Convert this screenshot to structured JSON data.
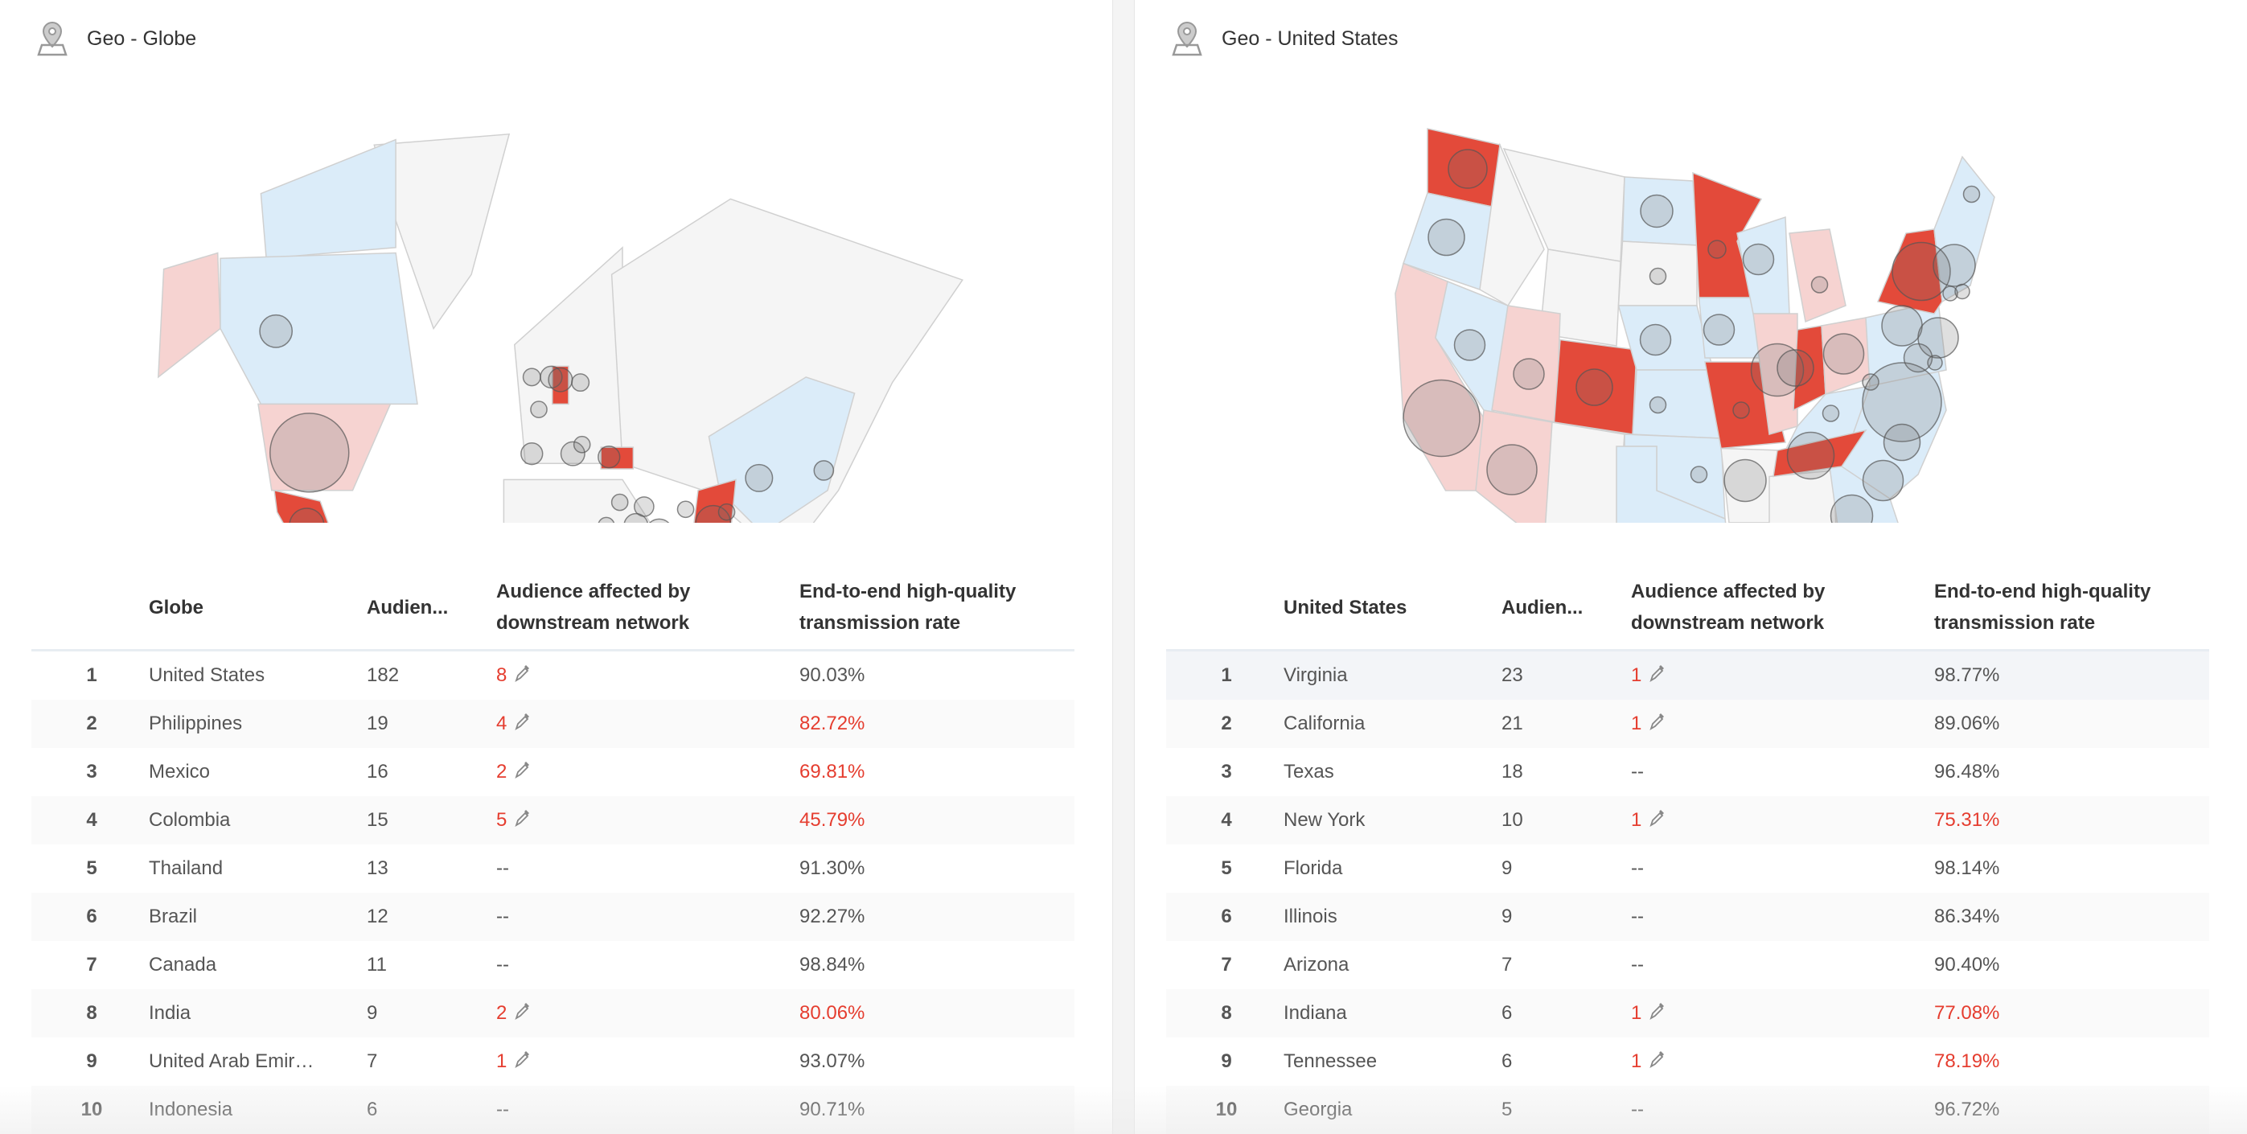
{
  "colors": {
    "accent_red": "#e53d2f",
    "high": "#e34a3a",
    "mid": "#f6d3d1",
    "low": "#dbecf9",
    "none": "#f5f5f5"
  },
  "globe": {
    "title": "Geo - Globe",
    "headers": {
      "region": "Globe",
      "audience": "Audien...",
      "affected": "Audience affected by downstream network",
      "rate": "End-to-end high-quality transmission rate"
    },
    "rows": [
      {
        "rank": "1",
        "name": "United States",
        "audience": "182",
        "affected": "8",
        "affected_alert": true,
        "rate": "90.03%",
        "rate_alert": false
      },
      {
        "rank": "2",
        "name": "Philippines",
        "audience": "19",
        "affected": "4",
        "affected_alert": true,
        "rate": "82.72%",
        "rate_alert": true
      },
      {
        "rank": "3",
        "name": "Mexico",
        "audience": "16",
        "affected": "2",
        "affected_alert": true,
        "rate": "69.81%",
        "rate_alert": true
      },
      {
        "rank": "4",
        "name": "Colombia",
        "audience": "15",
        "affected": "5",
        "affected_alert": true,
        "rate": "45.79%",
        "rate_alert": true
      },
      {
        "rank": "5",
        "name": "Thailand",
        "audience": "13",
        "affected": "--",
        "affected_alert": false,
        "rate": "91.30%",
        "rate_alert": false
      },
      {
        "rank": "6",
        "name": "Brazil",
        "audience": "12",
        "affected": "--",
        "affected_alert": false,
        "rate": "92.27%",
        "rate_alert": false
      },
      {
        "rank": "7",
        "name": "Canada",
        "audience": "11",
        "affected": "--",
        "affected_alert": false,
        "rate": "98.84%",
        "rate_alert": false
      },
      {
        "rank": "8",
        "name": "India",
        "audience": "9",
        "affected": "2",
        "affected_alert": true,
        "rate": "80.06%",
        "rate_alert": true
      },
      {
        "rank": "9",
        "name": "United Arab Emir…",
        "audience": "7",
        "affected": "1",
        "affected_alert": true,
        "rate": "93.07%",
        "rate_alert": false
      },
      {
        "rank": "10",
        "name": "Indonesia",
        "audience": "6",
        "affected": "--",
        "affected_alert": false,
        "rate": "90.71%",
        "rate_alert": false
      }
    ]
  },
  "us": {
    "title": "Geo - United States",
    "headers": {
      "region": "United States",
      "audience": "Audien...",
      "affected": "Audience affected by downstream network",
      "rate": "End-to-end high-quality transmission rate"
    },
    "rows": [
      {
        "rank": "1",
        "name": "Virginia",
        "audience": "23",
        "affected": "1",
        "affected_alert": true,
        "rate": "98.77%",
        "rate_alert": false
      },
      {
        "rank": "2",
        "name": "California",
        "audience": "21",
        "affected": "1",
        "affected_alert": true,
        "rate": "89.06%",
        "rate_alert": false
      },
      {
        "rank": "3",
        "name": "Texas",
        "audience": "18",
        "affected": "--",
        "affected_alert": false,
        "rate": "96.48%",
        "rate_alert": false
      },
      {
        "rank": "4",
        "name": "New York",
        "audience": "10",
        "affected": "1",
        "affected_alert": true,
        "rate": "75.31%",
        "rate_alert": true
      },
      {
        "rank": "5",
        "name": "Florida",
        "audience": "9",
        "affected": "--",
        "affected_alert": false,
        "rate": "98.14%",
        "rate_alert": false
      },
      {
        "rank": "6",
        "name": "Illinois",
        "audience": "9",
        "affected": "--",
        "affected_alert": false,
        "rate": "86.34%",
        "rate_alert": false
      },
      {
        "rank": "7",
        "name": "Arizona",
        "audience": "7",
        "affected": "--",
        "affected_alert": false,
        "rate": "90.40%",
        "rate_alert": false
      },
      {
        "rank": "8",
        "name": "Indiana",
        "audience": "6",
        "affected": "1",
        "affected_alert": true,
        "rate": "77.08%",
        "rate_alert": true
      },
      {
        "rank": "9",
        "name": "Tennessee",
        "audience": "6",
        "affected": "1",
        "affected_alert": true,
        "rate": "78.19%",
        "rate_alert": true
      },
      {
        "rank": "10",
        "name": "Georgia",
        "audience": "5",
        "affected": "--",
        "affected_alert": false,
        "rate": "96.72%",
        "rate_alert": false
      }
    ]
  }
}
